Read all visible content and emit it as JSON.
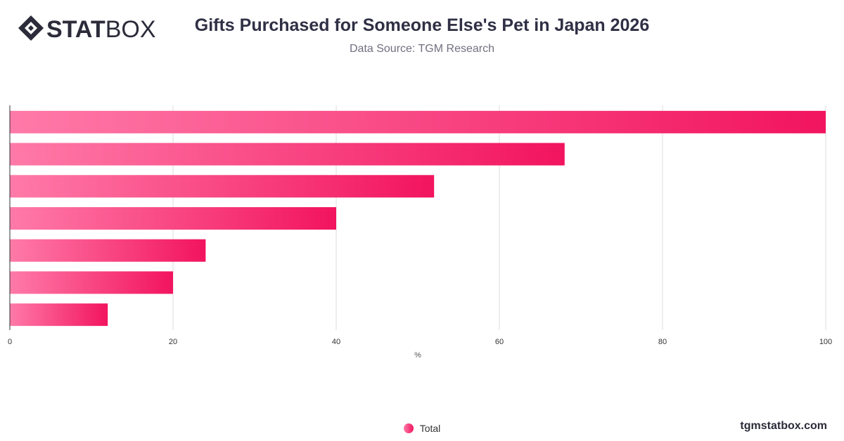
{
  "brand": {
    "logo_bold": "STAT",
    "logo_light": "BOX",
    "footer": "tgmstatbox.com"
  },
  "header": {
    "title": "Gifts Purchased for Someone Else's Pet in Japan 2026",
    "subtitle": "Data Source: TGM Research"
  },
  "colors": {
    "bar_start": "#ff7aa8",
    "bar_end": "#f2145f",
    "grid": "#dddddd",
    "axis": "#333333"
  },
  "chart_data": {
    "type": "bar",
    "orientation": "horizontal",
    "categories": [
      "",
      "",
      "",
      "",
      "",
      "",
      ""
    ],
    "series": [
      {
        "name": "Total",
        "values": [
          100,
          68,
          52,
          40,
          24,
          20,
          12
        ]
      }
    ],
    "xlabel": "%",
    "ylabel": "",
    "xlim": [
      0,
      100
    ],
    "xticks": [
      0,
      20,
      40,
      60,
      80,
      100
    ],
    "grid": true,
    "legend": "bottom-center"
  }
}
